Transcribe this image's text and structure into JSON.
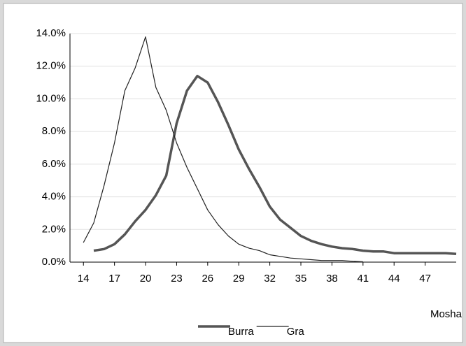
{
  "chart_data": {
    "type": "line",
    "x": [
      14,
      15,
      16,
      17,
      18,
      19,
      20,
      21,
      22,
      23,
      24,
      25,
      26,
      27,
      28,
      29,
      30,
      31,
      32,
      33,
      34,
      35,
      36,
      37,
      38,
      39,
      40,
      41,
      42,
      43,
      44,
      45,
      46,
      47,
      48,
      49,
      50
    ],
    "series": [
      {
        "name": "Burra",
        "color": "#555555",
        "width": 3.5,
        "values": [
          null,
          0.7,
          0.8,
          1.1,
          1.7,
          2.5,
          3.2,
          4.1,
          5.3,
          8.5,
          10.5,
          11.4,
          11.0,
          9.8,
          8.4,
          6.9,
          5.7,
          4.6,
          3.4,
          2.6,
          2.1,
          1.6,
          1.3,
          1.1,
          0.95,
          0.85,
          0.8,
          0.7,
          0.65,
          0.65,
          0.55,
          0.55,
          0.55,
          0.55,
          0.55,
          0.55,
          0.5
        ]
      },
      {
        "name": "Gra",
        "color": "#222222",
        "width": 1.2,
        "values": [
          1.2,
          2.4,
          4.7,
          7.3,
          10.5,
          11.9,
          13.8,
          10.7,
          9.3,
          7.3,
          5.8,
          4.5,
          3.2,
          2.3,
          1.6,
          1.1,
          0.85,
          0.7,
          0.45,
          0.35,
          0.25,
          0.2,
          0.15,
          0.1,
          0.1,
          0.1,
          0.05,
          0.02,
          null,
          null,
          null,
          null,
          null,
          null,
          null,
          null,
          null
        ]
      }
    ],
    "xlim": [
      12.7,
      50
    ],
    "xticks": [
      14,
      17,
      20,
      23,
      26,
      29,
      32,
      35,
      38,
      41,
      44,
      47
    ],
    "ylim": [
      0,
      14
    ],
    "yticks": [
      {
        "value": 0,
        "label": "0.0%"
      },
      {
        "value": 2,
        "label": "2.0%"
      },
      {
        "value": 4,
        "label": "4.0%"
      },
      {
        "value": 6,
        "label": "6.0%"
      },
      {
        "value": 8,
        "label": "8.0%"
      },
      {
        "value": 10,
        "label": "10.0%"
      },
      {
        "value": 12,
        "label": "12.0%"
      },
      {
        "value": 14,
        "label": "14.0%"
      }
    ],
    "xlabel": "Mosha",
    "grid": true,
    "legend": "bottom"
  }
}
